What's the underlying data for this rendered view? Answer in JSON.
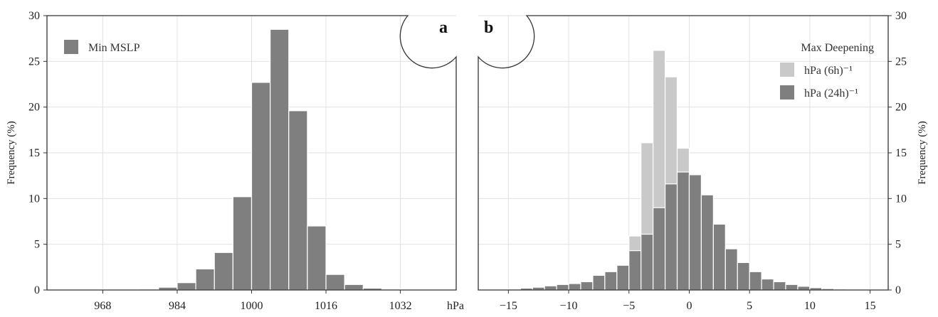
{
  "chart_data": [
    {
      "type": "bar",
      "panel_label": "a",
      "xlabel": "hPa",
      "ylabel": "Frequency (%)",
      "xlim": [
        956,
        1044
      ],
      "ylim": [
        0,
        30
      ],
      "xticks": [
        "968",
        "984",
        "1000",
        "1016",
        "1032"
      ],
      "yticks": [
        "0",
        "5",
        "10",
        "15",
        "20",
        "25",
        "30"
      ],
      "bin_width": 4,
      "grid": true,
      "legend_position": "top-left",
      "series": [
        {
          "name": "Min MSLP",
          "color": "#7f7f7f",
          "bin_starts": [
            960,
            964,
            968,
            972,
            976,
            980,
            984,
            988,
            992,
            996,
            1000,
            1004,
            1008,
            1012,
            1016,
            1020,
            1024,
            1028,
            1032,
            1036,
            1040
          ],
          "values": [
            0.05,
            0.05,
            0.05,
            0.05,
            0.1,
            0.3,
            0.8,
            2.3,
            4.1,
            10.2,
            22.7,
            28.5,
            19.6,
            7.0,
            1.7,
            0.6,
            0.2,
            0.1,
            0.05,
            0.05,
            0.05
          ]
        }
      ]
    },
    {
      "type": "bar",
      "panel_label": "b",
      "xlabel": "",
      "ylabel": "Frequency (%)",
      "xlim": [
        -17.5,
        16.5
      ],
      "ylim": [
        0,
        30
      ],
      "xticks": [
        "−15",
        "−10",
        "−5",
        "0",
        "5",
        "10",
        "15"
      ],
      "yticks": [
        "0",
        "5",
        "10",
        "15",
        "20",
        "25",
        "30"
      ],
      "bin_width": 1,
      "grid": true,
      "legend_title": "Max Deepening",
      "legend_position": "top-right",
      "series": [
        {
          "name": "hPa (6h)⁻¹",
          "color": "#c9c9c9",
          "bin_starts": [
            -16,
            -15,
            -14,
            -13,
            -12,
            -11,
            -10,
            -9,
            -8,
            -7,
            -6,
            -5,
            -4,
            -3,
            -2,
            -1,
            0,
            1,
            2,
            3,
            4,
            5,
            6,
            7,
            8,
            9,
            10,
            11,
            12,
            13,
            14
          ],
          "values": [
            0,
            0,
            0,
            0,
            0,
            0,
            0,
            0,
            0.1,
            0.6,
            2.1,
            5.9,
            16.1,
            26.2,
            23.3,
            15.5,
            6.7,
            1.6,
            0.4,
            0.1,
            0,
            0,
            0,
            0,
            0,
            0,
            0,
            0,
            0,
            0,
            0
          ]
        },
        {
          "name": "hPa (24h)⁻¹",
          "color": "#7f7f7f",
          "bin_starts": [
            -16,
            -15,
            -14,
            -13,
            -12,
            -11,
            -10,
            -9,
            -8,
            -7,
            -6,
            -5,
            -4,
            -3,
            -2,
            -1,
            0,
            1,
            2,
            3,
            4,
            5,
            6,
            7,
            8,
            9,
            10,
            11,
            12,
            13,
            14
          ],
          "values": [
            0.05,
            0.1,
            0.2,
            0.3,
            0.45,
            0.6,
            0.7,
            0.9,
            1.6,
            2.0,
            2.7,
            4.3,
            6.1,
            9.0,
            11.6,
            12.9,
            12.6,
            10.4,
            7.2,
            4.5,
            3.0,
            2.0,
            1.2,
            0.9,
            0.6,
            0.4,
            0.25,
            0.15,
            0.1,
            0.05,
            0.05
          ]
        }
      ]
    }
  ]
}
